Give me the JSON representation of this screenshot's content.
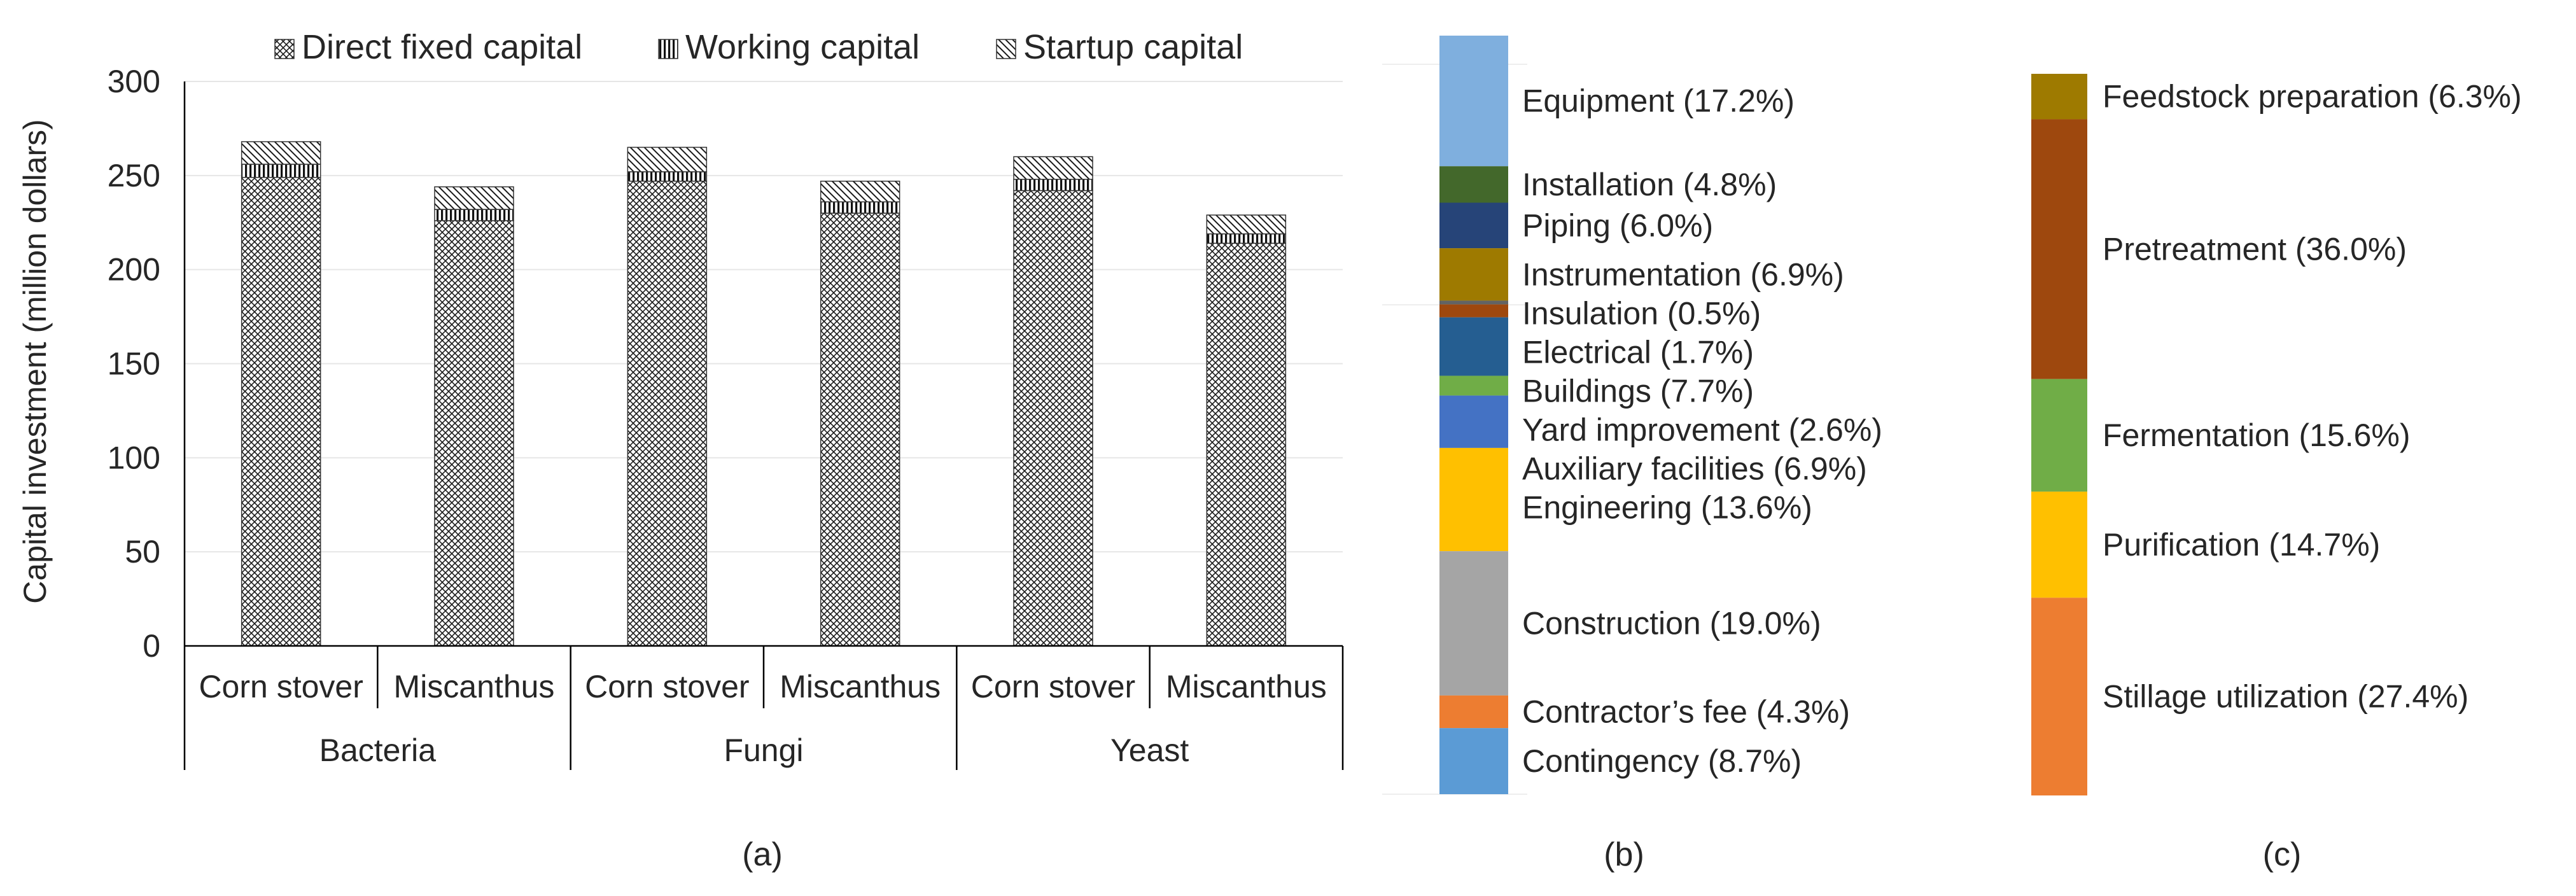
{
  "patterns": {
    "direct_fixed": "diagonal-crosshatch",
    "working": "vertical-stripes",
    "startup": "diagonal-hatch"
  },
  "chart_data": [
    {
      "type": "bar",
      "stacked": true,
      "panel_label": "(a)",
      "title": "",
      "ylabel": "Capital investment (million dollars)",
      "xlabel": "",
      "ylim": [
        0,
        300
      ],
      "yticks": [
        0,
        50,
        100,
        150,
        200,
        250,
        300
      ],
      "legend": [
        "Direct fixed capital",
        "Working capital",
        "Startup capital"
      ],
      "legend_position": "top",
      "groups": [
        "Bacteria",
        "Fungi",
        "Yeast"
      ],
      "categories": [
        "Corn stover",
        "Miscanthus",
        "Corn stover",
        "Miscanthus",
        "Corn stover",
        "Miscanthus"
      ],
      "series": [
        {
          "name": "Direct fixed capital",
          "values": [
            249,
            226,
            247,
            230,
            242,
            214
          ]
        },
        {
          "name": "Working capital",
          "values": [
            7,
            6,
            5,
            6,
            6,
            5
          ]
        },
        {
          "name": "Startup capital",
          "values": [
            12,
            12,
            13,
            11,
            12,
            10
          ]
        }
      ],
      "gridlines": true
    },
    {
      "type": "bar",
      "stacked": true,
      "panel_label": "(b)",
      "unit": "%",
      "segments": [
        {
          "label": "Equipment",
          "value": 17.2,
          "color": "#7FAFDE"
        },
        {
          "label": "Installation",
          "value": 4.8,
          "color": "#43682B"
        },
        {
          "label": "Piping",
          "value": 6.0,
          "color": "#264478"
        },
        {
          "label": "Instrumentation",
          "value": 6.9,
          "color": "#9E7A00"
        },
        {
          "label": "Insulation",
          "value": 0.5,
          "color": "#636363"
        },
        {
          "label": "Electrical",
          "value": 1.7,
          "color": "#9E480E"
        },
        {
          "label": "Buildings",
          "value": 7.7,
          "color": "#255E91"
        },
        {
          "label": "Yard improvement",
          "value": 2.6,
          "color": "#70AD47"
        },
        {
          "label": "Auxiliary facilities",
          "value": 6.9,
          "color": "#4472C4"
        },
        {
          "label": "Engineering",
          "value": 13.6,
          "color": "#FFC000"
        },
        {
          "label": "Construction",
          "value": 19.0,
          "color": "#A5A5A5"
        },
        {
          "label": "Contractor’s fee",
          "value": 4.3,
          "color": "#ED7D31"
        },
        {
          "label": "Contingency",
          "value": 8.7,
          "color": "#5B9BD5"
        }
      ]
    },
    {
      "type": "bar",
      "stacked": true,
      "panel_label": "(c)",
      "unit": "%",
      "segments": [
        {
          "label": "Feedstock preparation",
          "value": 6.3,
          "color": "#9E7A00"
        },
        {
          "label": "Pretreatment",
          "value": 36.0,
          "color": "#9E480E"
        },
        {
          "label": "Fermentation",
          "value": 15.6,
          "color": "#70AD47"
        },
        {
          "label": "Purification",
          "value": 14.7,
          "color": "#FFC000"
        },
        {
          "label": "Stillage utilization",
          "value": 27.4,
          "color": "#ED7D31"
        }
      ]
    }
  ]
}
